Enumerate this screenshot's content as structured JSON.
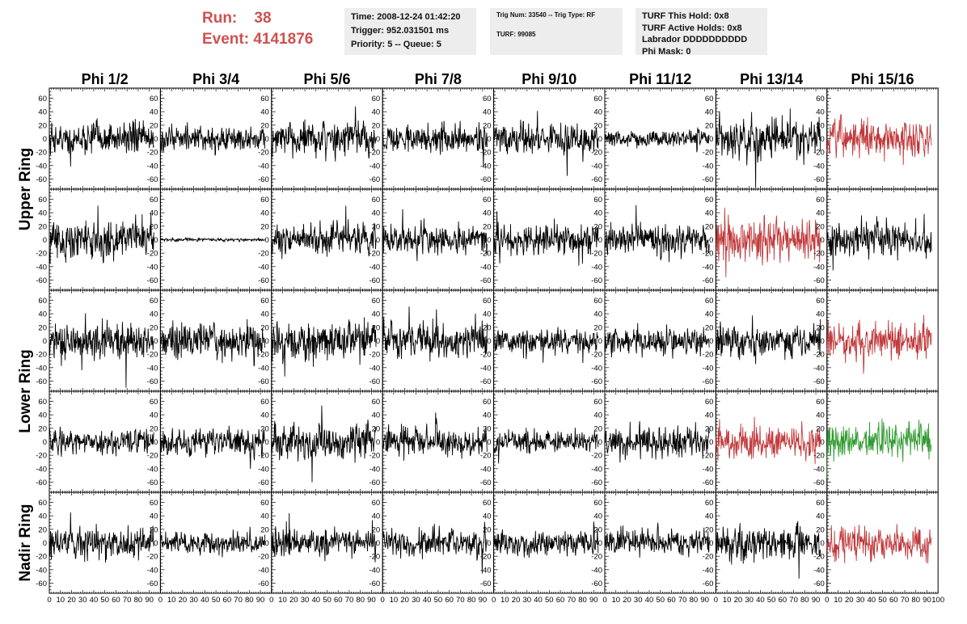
{
  "header": {
    "run_label": "Run:",
    "run_value": "38",
    "event_label": "Event:",
    "event_value": "4141876"
  },
  "info_time": [
    "Time: 2008-12-24 01:42:20",
    "Trigger: 952.031501 ms",
    "Priority: 5 -- Queue: 5"
  ],
  "info_trig": {
    "trig_line": "Trig Num: 33540 -- Trig Type: RF",
    "turf_line": "TURF: 99085"
  },
  "info_turf": [
    "TURF This Hold: 0x8",
    "TURF Active Holds: 0x8",
    "Labrador DDDDDDDDDD",
    "Phi Mask: 0"
  ],
  "colors": {
    "run_text": "#d0504f",
    "trace_default": "#000000",
    "trace_red": "#c0393b",
    "trace_green": "#2e9a2e",
    "info_bg": "#ededed"
  },
  "chart_data": {
    "type": "line",
    "columns": [
      "Phi 1/2",
      "Phi 3/4",
      "Phi 5/6",
      "Phi 7/8",
      "Phi 9/10",
      "Phi 11/12",
      "Phi 13/14",
      "Phi 15/16"
    ],
    "row_labels": [
      {
        "text": "Upper Ring",
        "rows": [
          0,
          1
        ]
      },
      {
        "text": "Lower Ring",
        "rows": [
          2,
          3
        ]
      },
      {
        "text": "Nadir Ring",
        "rows": [
          4,
          4
        ]
      }
    ],
    "ylim": [
      -75,
      75
    ],
    "xlim": [
      0,
      100
    ],
    "yticks": [
      -60,
      -40,
      -20,
      0,
      20,
      40,
      60
    ],
    "xticks": [
      0,
      10,
      20,
      30,
      40,
      50,
      60,
      70,
      80,
      90,
      100
    ],
    "xtick_labels": [
      "0",
      "10",
      "20",
      "30",
      "40",
      "50",
      "60",
      "70",
      "80",
      "90",
      "100"
    ],
    "x_range_of_traces": [
      0,
      94
    ],
    "panels": [
      [
        {
          "amp": 20,
          "color": "black"
        },
        {
          "amp": 15,
          "color": "black"
        },
        {
          "amp": 22,
          "color": "black"
        },
        {
          "amp": 18,
          "color": "black"
        },
        {
          "amp": 20,
          "color": "black"
        },
        {
          "amp": 10,
          "color": "black"
        },
        {
          "amp": 24,
          "color": "black"
        },
        {
          "amp": 22,
          "color": "red"
        }
      ],
      [
        {
          "amp": 24,
          "color": "black"
        },
        {
          "amp": 2,
          "color": "black"
        },
        {
          "amp": 20,
          "color": "black"
        },
        {
          "amp": 18,
          "color": "black"
        },
        {
          "amp": 18,
          "color": "black"
        },
        {
          "amp": 20,
          "color": "black"
        },
        {
          "amp": 27,
          "color": "red"
        },
        {
          "amp": 22,
          "color": "black"
        }
      ],
      [
        {
          "amp": 22,
          "color": "black"
        },
        {
          "amp": 24,
          "color": "black"
        },
        {
          "amp": 24,
          "color": "black"
        },
        {
          "amp": 22,
          "color": "black"
        },
        {
          "amp": 16,
          "color": "black"
        },
        {
          "amp": 18,
          "color": "black"
        },
        {
          "amp": 20,
          "color": "black"
        },
        {
          "amp": 22,
          "color": "red"
        }
      ],
      [
        {
          "amp": 16,
          "color": "black"
        },
        {
          "amp": 20,
          "color": "black"
        },
        {
          "amp": 22,
          "color": "black"
        },
        {
          "amp": 18,
          "color": "black"
        },
        {
          "amp": 14,
          "color": "black"
        },
        {
          "amp": 20,
          "color": "black"
        },
        {
          "amp": 22,
          "color": "red"
        },
        {
          "amp": 24,
          "color": "green"
        }
      ],
      [
        {
          "amp": 20,
          "color": "black"
        },
        {
          "amp": 14,
          "color": "black"
        },
        {
          "amp": 18,
          "color": "black"
        },
        {
          "amp": 18,
          "color": "black"
        },
        {
          "amp": 16,
          "color": "black"
        },
        {
          "amp": 16,
          "color": "black"
        },
        {
          "amp": 22,
          "color": "black"
        },
        {
          "amp": 20,
          "color": "red"
        }
      ]
    ]
  }
}
